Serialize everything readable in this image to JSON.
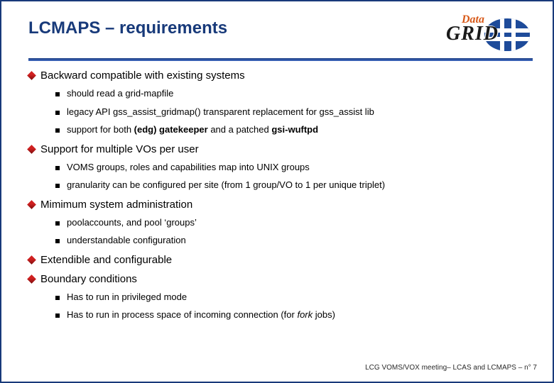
{
  "title": "LCMAPS – requirements",
  "logo": {
    "top_word": "Data",
    "bottom_word": "GRID"
  },
  "bullets": [
    {
      "text": "Backward compatible with existing systems",
      "subs": [
        {
          "text": "should read a grid-mapfile"
        },
        {
          "text": "legacy API gss_assist_gridmap() transparent replacement for gss_assist lib"
        },
        {
          "html": "support for both <b>(edg) gatekeeper</b> and a patched <b>gsi-wuftpd</b>"
        }
      ]
    },
    {
      "text": "Support for multiple VOs per user",
      "subs": [
        {
          "text": "VOMS groups, roles and capabilities map into UNIX groups"
        },
        {
          "text": "granularity can be configured per site (from 1 group/VO to 1 per unique triplet)"
        }
      ]
    },
    {
      "text": "Mimimum system administration",
      "subs": [
        {
          "text": "poolaccounts, and pool ‘groups’"
        },
        {
          "text": "understandable configuration"
        }
      ]
    },
    {
      "text": "Extendible and configurable",
      "subs": []
    },
    {
      "text": "Boundary conditions",
      "subs": [
        {
          "text": "Has to run in privileged mode"
        },
        {
          "html": "Has to run in process space of incoming connection (for <i>fork</i> jobs)"
        }
      ]
    }
  ],
  "footer": "LCG VOMS/VOX meeting– LCAS and LCMAPS  –  n° 7"
}
